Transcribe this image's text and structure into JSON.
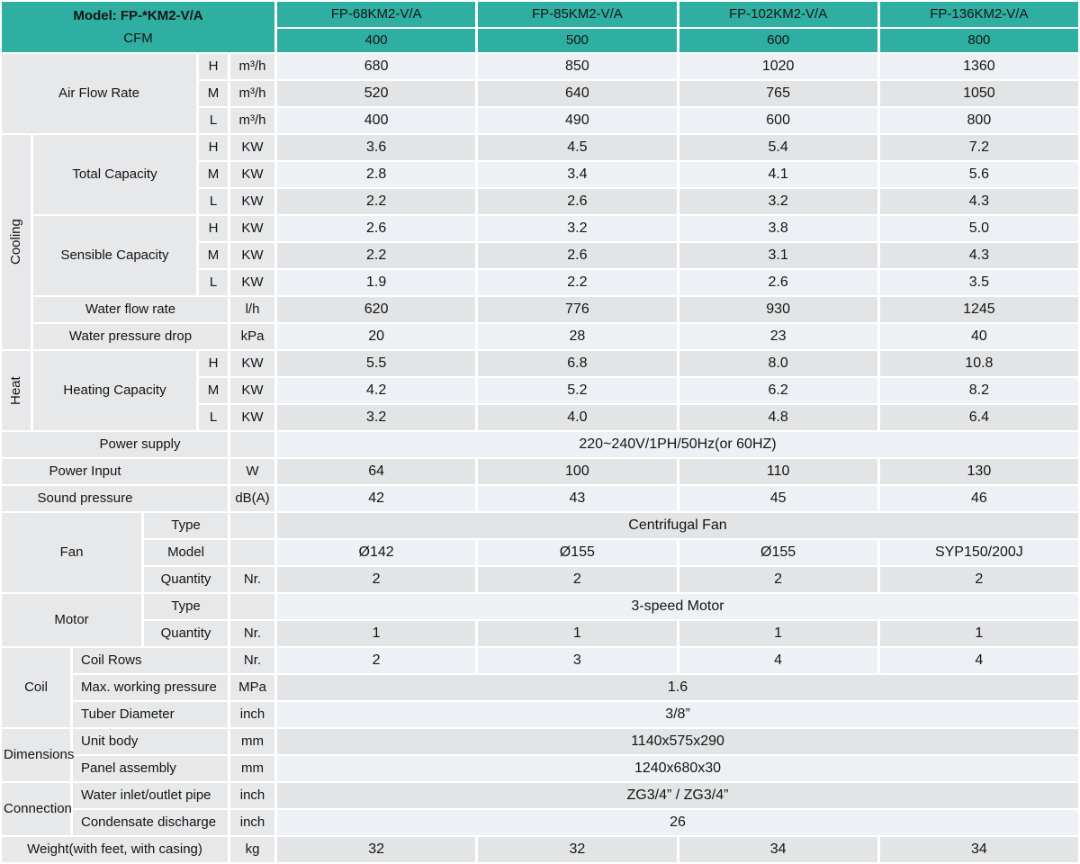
{
  "colors": {
    "teal": "#2fafa1",
    "row_light": "#edf1f5",
    "row_dark": "#e2e4e6",
    "label_bg": "#e7e8ea"
  },
  "header": {
    "model": "Model: FP-*KM2-V/A",
    "cfm": "CFM",
    "models": [
      "FP-68KM2-V/A",
      "FP-85KM2-V/A",
      "FP-102KM2-V/A",
      "FP-136KM2-V/A"
    ],
    "cfm_values": [
      "400",
      "500",
      "600",
      "800"
    ]
  },
  "speeds": [
    "H",
    "M",
    "L"
  ],
  "air_flow": {
    "label": "Air Flow Rate",
    "unit": "m³/h",
    "values": [
      [
        "680",
        "850",
        "1020",
        "1360"
      ],
      [
        "520",
        "640",
        "765",
        "1050"
      ],
      [
        "400",
        "490",
        "600",
        "800"
      ]
    ]
  },
  "cooling": {
    "label": "Cooling",
    "total": {
      "label": "Total Capacity",
      "unit": "KW",
      "values": [
        [
          "3.6",
          "4.5",
          "5.4",
          "7.2"
        ],
        [
          "2.8",
          "3.4",
          "4.1",
          "5.6"
        ],
        [
          "2.2",
          "2.6",
          "3.2",
          "4.3"
        ]
      ]
    },
    "sensible": {
      "label": "Sensible Capacity",
      "unit": "KW",
      "values": [
        [
          "2.6",
          "3.2",
          "3.8",
          "5.0"
        ],
        [
          "2.2",
          "2.6",
          "3.1",
          "4.3"
        ],
        [
          "1.9",
          "2.2",
          "2.6",
          "3.5"
        ]
      ]
    },
    "water_flow": {
      "label": "Water flow rate",
      "unit": "l/h",
      "values": [
        "620",
        "776",
        "930",
        "1245"
      ]
    },
    "water_drop": {
      "label": "Water pressure drop",
      "unit": "kPa",
      "values": [
        "20",
        "28",
        "23",
        "40"
      ]
    }
  },
  "heat": {
    "label": "Heat",
    "heating": {
      "label": "Heating Capacity",
      "unit": "KW",
      "values": [
        [
          "5.5",
          "6.8",
          "8.0",
          "10.8"
        ],
        [
          "4.2",
          "5.2",
          "6.2",
          "8.2"
        ],
        [
          "3.2",
          "4.0",
          "4.8",
          "6.4"
        ]
      ]
    }
  },
  "power_supply": {
    "label": "Power supply",
    "value": "220~240V/1PH/50Hz(or 60HZ)"
  },
  "power_input": {
    "label": "Power Input",
    "unit": "W",
    "values": [
      "64",
      "100",
      "110",
      "130"
    ]
  },
  "sound_pressure": {
    "label": "Sound pressure",
    "unit": "dB(A)",
    "values": [
      "42",
      "43",
      "45",
      "46"
    ]
  },
  "fan": {
    "label": "Fan",
    "type": {
      "label": "Type",
      "value": "Centrifugal Fan"
    },
    "model": {
      "label": "Model",
      "values": [
        "Ø142",
        "Ø155",
        "Ø155",
        "SYP150/200J"
      ]
    },
    "quantity": {
      "label": "Quantity",
      "unit": "Nr.",
      "values": [
        "2",
        "2",
        "2",
        "2"
      ]
    }
  },
  "motor": {
    "label": "Motor",
    "type": {
      "label": "Type",
      "value": "3-speed Motor"
    },
    "quantity": {
      "label": "Quantity",
      "unit": "Nr.",
      "values": [
        "1",
        "1",
        "1",
        "1"
      ]
    }
  },
  "coil": {
    "label": "Coil",
    "rows": {
      "label": "Coil Rows",
      "unit": "Nr.",
      "values": [
        "2",
        "3",
        "4",
        "4"
      ]
    },
    "pressure": {
      "label": "Max. working pressure",
      "unit": "MPa",
      "value": "1.6"
    },
    "tube": {
      "label": "Tuber Diameter",
      "unit": "inch",
      "value": "3/8”"
    }
  },
  "dimensions": {
    "label": "Dimensions",
    "unit_body": {
      "label": "Unit body",
      "unit": "mm",
      "value": "1140x575x290"
    },
    "panel": {
      "label": "Panel assembly",
      "unit": "mm",
      "value": "1240x680x30"
    }
  },
  "connection": {
    "label": "Connection",
    "water_pipe": {
      "label": "Water inlet/outlet pipe",
      "unit": "inch",
      "value": "ZG3/4” / ZG3/4”"
    },
    "condensate": {
      "label": "Condensate discharge",
      "unit": "inch",
      "value": "26"
    }
  },
  "weight": {
    "label": "Weight(with feet, with casing)",
    "unit": "kg",
    "values": [
      "32",
      "32",
      "34",
      "34"
    ]
  }
}
